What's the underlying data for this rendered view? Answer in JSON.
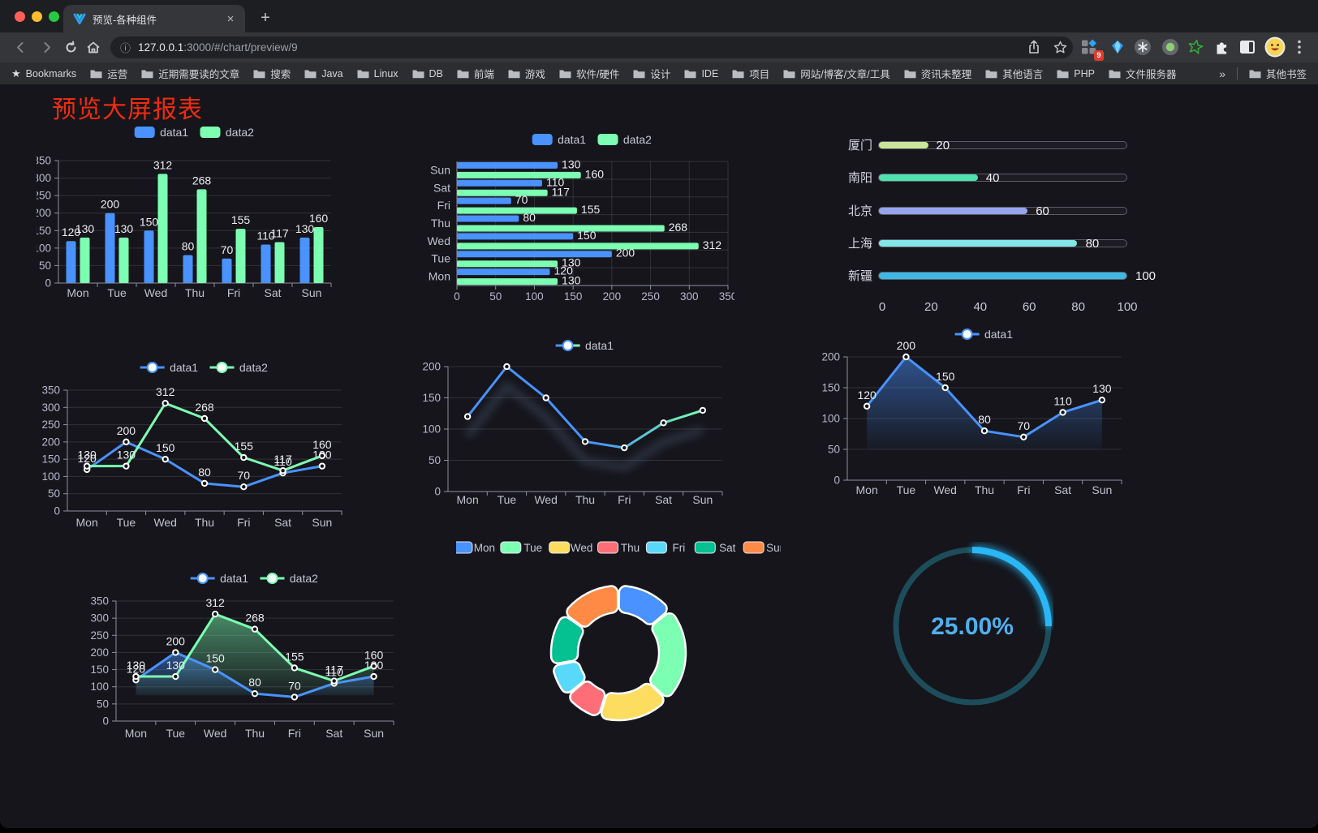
{
  "browser": {
    "tab": {
      "title": "预览-各种组件"
    },
    "url": {
      "host": "127.0.0.1",
      "rest": ":3000/#/chart/preview/9"
    },
    "extensions_badge": "9",
    "bookmarks_label": "Bookmarks",
    "bookmarks": [
      "运营",
      "近期需要读的文章",
      "搜索",
      "Java",
      "Linux",
      "DB",
      "前端",
      "游戏",
      "软件/硬件",
      "设计",
      "IDE",
      "项目",
      "网站/博客/文章/工具",
      "资讯未整理",
      "其他语言",
      "PHP",
      "文件服务器"
    ],
    "bookmarks_overflow": "»",
    "other_bookmarks": "其他书签"
  },
  "page": {
    "title": "预览大屏报表"
  },
  "chart_data": [
    {
      "id": "bar-vertical",
      "type": "bar",
      "categories": [
        "Mon",
        "Tue",
        "Wed",
        "Thu",
        "Fri",
        "Sat",
        "Sun"
      ],
      "series": [
        {
          "name": "data1",
          "color": "#4992ff",
          "values": [
            120,
            200,
            150,
            80,
            70,
            110,
            130
          ]
        },
        {
          "name": "data2",
          "color": "#7cffb2",
          "values": [
            130,
            130,
            312,
            268,
            155,
            117,
            160
          ]
        }
      ],
      "ylim": [
        0,
        350
      ],
      "ystep": 50,
      "grid": true,
      "legend_position": "top",
      "value_labels": true
    },
    {
      "id": "bar-horizontal",
      "type": "bar-horizontal",
      "categories": [
        "Mon",
        "Tue",
        "Wed",
        "Thu",
        "Fri",
        "Sat",
        "Sun"
      ],
      "category_order": "Mon-at-bottom",
      "series": [
        {
          "name": "data1",
          "color": "#4992ff",
          "values": [
            120,
            200,
            150,
            80,
            70,
            110,
            130
          ]
        },
        {
          "name": "data2",
          "color": "#7cffb2",
          "values": [
            130,
            130,
            312,
            268,
            155,
            117,
            160
          ]
        }
      ],
      "xlim": [
        0,
        350
      ],
      "xstep": 50,
      "grid": true,
      "legend_position": "top",
      "value_labels": true
    },
    {
      "id": "city-progress",
      "type": "progress-bars",
      "max": 100,
      "axis_ticks": [
        0,
        20,
        40,
        60,
        80,
        100
      ],
      "rows": [
        {
          "label": "厦门",
          "value": 20,
          "color": "#c8e79b"
        },
        {
          "label": "南阳",
          "value": 40,
          "color": "#4fe2ad"
        },
        {
          "label": "北京",
          "value": 60,
          "color": "#98a4ee"
        },
        {
          "label": "上海",
          "value": 80,
          "color": "#83e7e7"
        },
        {
          "label": "新疆",
          "value": 100,
          "color": "#3eb7e5"
        }
      ]
    },
    {
      "id": "line-basic",
      "type": "line",
      "categories": [
        "Mon",
        "Tue",
        "Wed",
        "Thu",
        "Fri",
        "Sat",
        "Sun"
      ],
      "series": [
        {
          "name": "data1",
          "color": "#4992ff",
          "values": [
            120,
            200,
            150,
            80,
            70,
            110,
            130
          ]
        },
        {
          "name": "data2",
          "color": "#7cffb2",
          "values": [
            130,
            130,
            312,
            268,
            155,
            117,
            160
          ]
        }
      ],
      "ylim": [
        0,
        350
      ],
      "ystep": 50,
      "legend_position": "top",
      "value_labels": true
    },
    {
      "id": "line-gradient",
      "type": "line",
      "categories": [
        "Mon",
        "Tue",
        "Wed",
        "Thu",
        "Fri",
        "Sat",
        "Sun"
      ],
      "series": [
        {
          "name": "data1",
          "color_gradient": [
            "#4992ff",
            "#7cffb2"
          ],
          "values": [
            120,
            200,
            150,
            80,
            70,
            110,
            130
          ]
        }
      ],
      "ylim": [
        0,
        200
      ],
      "ystep": 50,
      "legend_position": "top",
      "value_labels": false,
      "shadow": true
    },
    {
      "id": "area-single",
      "type": "area",
      "categories": [
        "Mon",
        "Tue",
        "Wed",
        "Thu",
        "Fri",
        "Sat",
        "Sun"
      ],
      "series": [
        {
          "name": "data1",
          "color": "#4992ff",
          "values": [
            120,
            200,
            150,
            80,
            70,
            110,
            130
          ]
        }
      ],
      "ylim": [
        0,
        200
      ],
      "ystep": 50,
      "legend_position": "top",
      "value_labels": true,
      "area_base": 50
    },
    {
      "id": "area-double",
      "type": "area",
      "categories": [
        "Mon",
        "Tue",
        "Wed",
        "Thu",
        "Fri",
        "Sat",
        "Sun"
      ],
      "series": [
        {
          "name": "data1",
          "color": "#4992ff",
          "values": [
            120,
            200,
            150,
            80,
            70,
            110,
            130
          ]
        },
        {
          "name": "data2",
          "color": "#7cffb2",
          "values": [
            130,
            130,
            312,
            268,
            155,
            117,
            160
          ]
        }
      ],
      "ylim": [
        0,
        350
      ],
      "ystep": 50,
      "legend_position": "top",
      "value_labels": true,
      "area_base": 75
    },
    {
      "id": "donut",
      "type": "pie",
      "inner_radius": true,
      "categories": [
        "Mon",
        "Tue",
        "Wed",
        "Thu",
        "Fri",
        "Sat",
        "Sun"
      ],
      "values": [
        120,
        200,
        150,
        80,
        70,
        110,
        130
      ],
      "colors": [
        "#4992ff",
        "#7cffb2",
        "#fddd60",
        "#ff6e76",
        "#58d9f9",
        "#05c091",
        "#ff8a45"
      ],
      "border_color": "#ffffff",
      "legend_position": "top"
    },
    {
      "id": "gauge",
      "type": "gauge",
      "value": 25,
      "max": 100,
      "label": "25.00%",
      "color": "#29b7f5",
      "track_color": "#1d4d5a",
      "text_color": "#4fb0ee"
    }
  ]
}
